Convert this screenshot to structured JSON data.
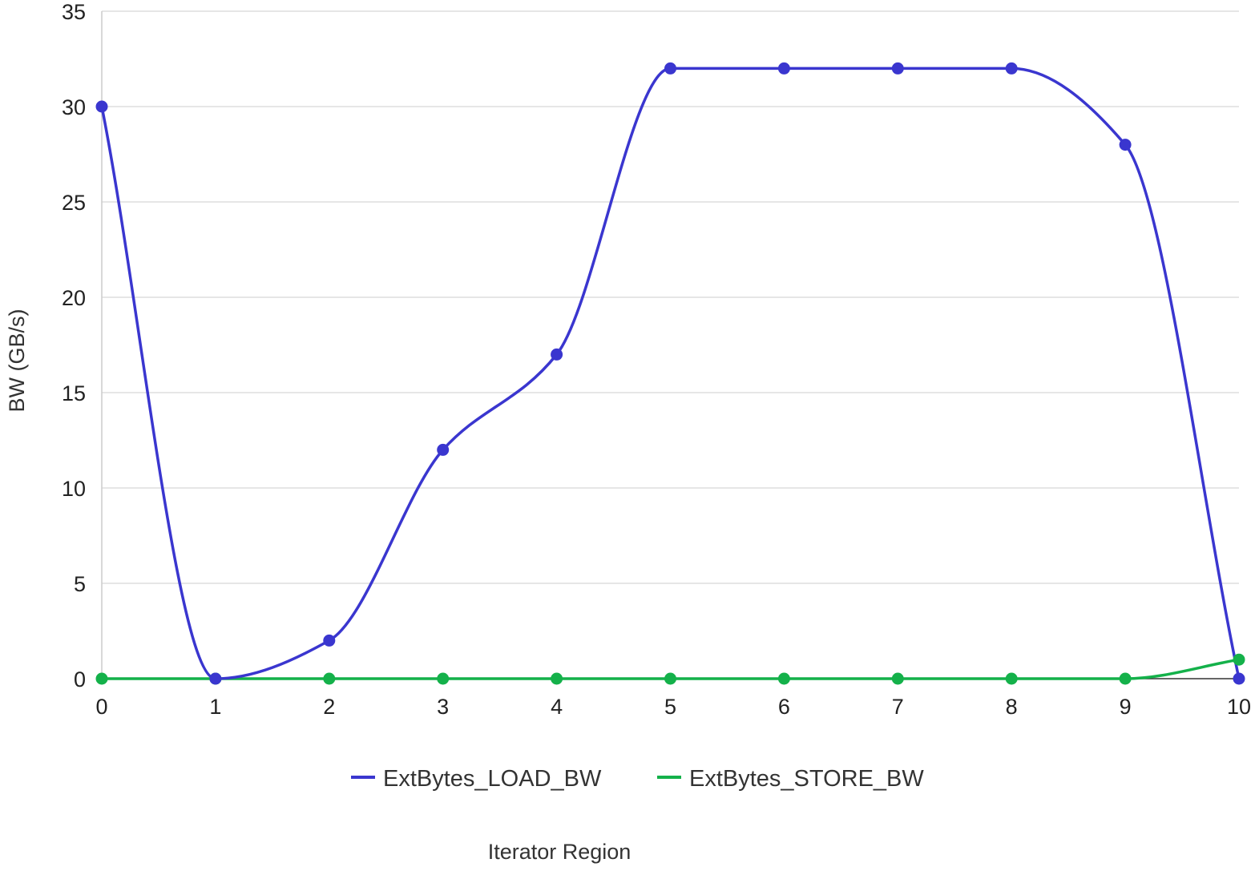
{
  "chart_data": {
    "type": "line",
    "title": "",
    "xlabel": "Iterator Region",
    "ylabel": "BW (GB/s)",
    "x": [
      0,
      1,
      2,
      3,
      4,
      5,
      6,
      7,
      8,
      9,
      10
    ],
    "xlim": [
      0,
      10
    ],
    "ylim": [
      0,
      35
    ],
    "y_ticks": [
      0,
      5,
      10,
      15,
      20,
      25,
      30,
      35
    ],
    "x_ticks": [
      0,
      1,
      2,
      3,
      4,
      5,
      6,
      7,
      8,
      9,
      10
    ],
    "grid": "horizontal",
    "smooth": true,
    "legend_position": "bottom",
    "series": [
      {
        "name": "ExtBytes_LOAD_BW",
        "color": "#3a36cf",
        "values": [
          30,
          0,
          2,
          12,
          17,
          32,
          32,
          32,
          32,
          28,
          0
        ]
      },
      {
        "name": "ExtBytes_STORE_BW",
        "color": "#14b14a",
        "values": [
          0,
          0,
          0,
          0,
          0,
          0,
          0,
          0,
          0,
          0,
          1
        ]
      }
    ]
  }
}
